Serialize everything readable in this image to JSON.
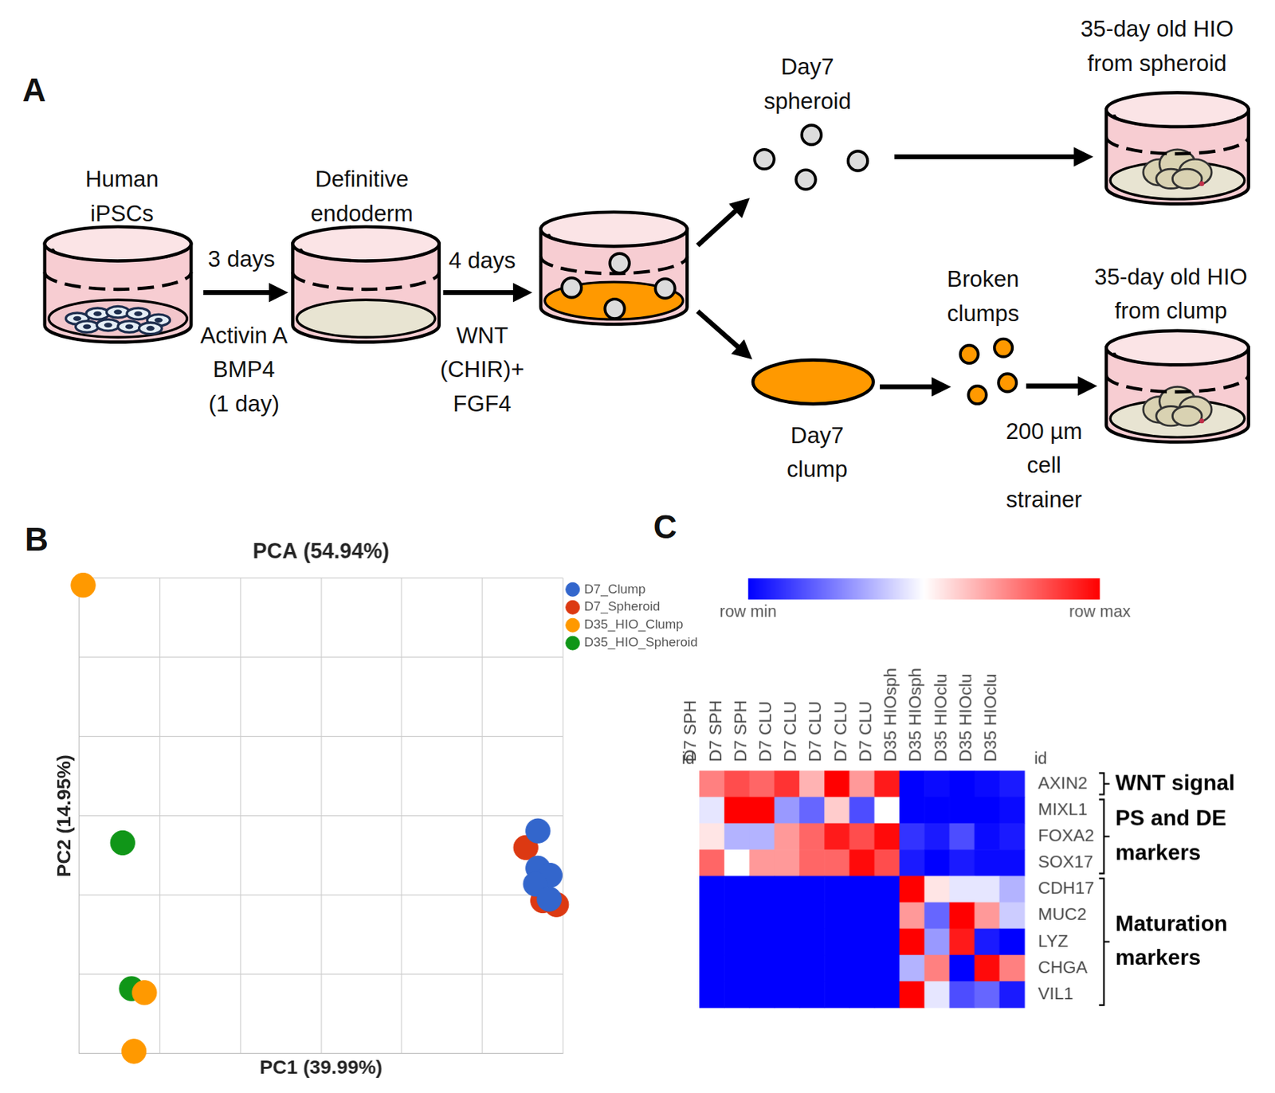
{
  "panel_labels": [
    "A",
    "B",
    "C"
  ],
  "diagram": {
    "nodes": [
      {
        "id": "ipsc",
        "label": [
          "Human",
          "iPSCs"
        ]
      },
      {
        "id": "de",
        "label": [
          "Definitive",
          "endoderm"
        ]
      },
      {
        "id": "mix"
      },
      {
        "id": "sph",
        "label": [
          "Day7",
          "spheroid"
        ]
      },
      {
        "id": "hio_sph",
        "label": [
          "35-day old HIO",
          "from spheroid"
        ]
      },
      {
        "id": "clump",
        "label": [
          "Day7",
          "clump"
        ]
      },
      {
        "id": "broken",
        "label": [
          "Broken",
          "clumps"
        ]
      },
      {
        "id": "hio_clu",
        "label": [
          "35-day old HIO",
          "from clump"
        ]
      }
    ],
    "edges": [
      {
        "from": "ipsc",
        "to": "de",
        "above": [
          "3 days"
        ],
        "below": [
          "Activin A",
          "BMP4",
          "(1 day)"
        ]
      },
      {
        "from": "de",
        "to": "mix",
        "above": [
          "4 days"
        ],
        "below": [
          "WNT",
          "(CHIR)+",
          "FGF4"
        ]
      },
      {
        "from": "mix",
        "to": "sph"
      },
      {
        "from": "sph",
        "to": "hio_sph"
      },
      {
        "from": "mix",
        "to": "clump"
      },
      {
        "from": "clump",
        "to": "broken"
      },
      {
        "from": "broken",
        "to": "hio_clu",
        "below": [
          "200 µm",
          "cell",
          "strainer"
        ]
      }
    ]
  },
  "chart_data": [
    {
      "type": "scatter",
      "title": "PCA (54.94%)",
      "xlabel": "PC1 (39.99%)",
      "ylabel": "PC2 (14.95%)",
      "xlim": [
        0,
        6
      ],
      "ylim": [
        0,
        6
      ],
      "xticks": [
        0,
        1,
        2,
        3,
        4,
        5,
        6
      ],
      "yticks": [
        0,
        1,
        2,
        3,
        4,
        5,
        6
      ],
      "grid": true,
      "tick_labels": false,
      "legend": "right",
      "marker": "circle",
      "series": [
        {
          "name": "D7_Clump",
          "color": "#3366cc",
          "x": [
            5.69,
            5.69,
            5.84,
            5.66,
            5.83
          ],
          "values": [
            2.81,
            2.34,
            2.25,
            2.14,
            1.95
          ]
        },
        {
          "name": "D7_Spheroid",
          "color": "#dc3912",
          "x": [
            5.54,
            5.75,
            5.92
          ],
          "values": [
            2.6,
            1.93,
            1.88
          ]
        },
        {
          "name": "D35_HIO_Clump",
          "color": "#ff9900",
          "x": [
            0.05,
            0.81,
            0.68
          ],
          "values": [
            5.91,
            0.77,
            0.03
          ]
        },
        {
          "name": "D35_HIO_Spheroid",
          "color": "#109618",
          "x": [
            0.54,
            0.65
          ],
          "values": [
            2.66,
            0.82
          ]
        }
      ]
    },
    {
      "type": "heatmap",
      "axis_label": "id",
      "columns": [
        "D7 SPH",
        "D7 SPH",
        "D7 SPH",
        "D7 CLU",
        "D7 CLU",
        "D7 CLU",
        "D7 CLU",
        "D7 CLU",
        "D35 HIOsph",
        "D35 HIOsph",
        "D35 HIOclu",
        "D35 HIOclu",
        "D35 HIOclu"
      ],
      "rows": [
        "AXIN2",
        "MIXL1",
        "FOXA2",
        "SOX17",
        "CDH17",
        "MUC2",
        "LYZ",
        "CHGA",
        "VIL1"
      ],
      "cells": [
        [
          0.75,
          0.85,
          0.8,
          0.9,
          0.65,
          1.0,
          0.7,
          0.95,
          0.0,
          0.02,
          0.0,
          0.02,
          0.05
        ],
        [
          0.45,
          1.0,
          1.0,
          0.3,
          0.2,
          0.6,
          0.15,
          0.5,
          0.0,
          0.0,
          0.0,
          0.0,
          0.02
        ],
        [
          0.55,
          0.35,
          0.35,
          0.7,
          0.8,
          0.95,
          0.85,
          0.98,
          0.1,
          0.05,
          0.15,
          0.02,
          0.05
        ],
        [
          0.8,
          0.5,
          0.7,
          0.7,
          0.8,
          0.8,
          0.98,
          0.85,
          0.05,
          0.0,
          0.05,
          0.02,
          0.02
        ],
        [
          0.0,
          0.0,
          0.0,
          0.0,
          0.0,
          0.0,
          0.0,
          0.0,
          1.0,
          0.55,
          0.45,
          0.45,
          0.35
        ],
        [
          0.0,
          0.0,
          0.0,
          0.0,
          0.0,
          0.0,
          0.0,
          0.0,
          0.7,
          0.2,
          1.0,
          0.7,
          0.4
        ],
        [
          0.0,
          0.0,
          0.0,
          0.0,
          0.0,
          0.0,
          0.0,
          0.0,
          1.0,
          0.3,
          0.95,
          0.05,
          0.0
        ],
        [
          0.0,
          0.0,
          0.0,
          0.0,
          0.0,
          0.0,
          0.0,
          0.0,
          0.35,
          0.75,
          0.0,
          0.98,
          0.75
        ],
        [
          0.0,
          0.0,
          0.0,
          0.0,
          0.0,
          0.0,
          0.0,
          0.0,
          1.0,
          0.45,
          0.15,
          0.2,
          0.05
        ]
      ],
      "colorbar": {
        "range": [
          0,
          1
        ],
        "colors": [
          "#0000ff",
          "#ffffff",
          "#ff0000"
        ],
        "ticks": [
          {
            "value": 0,
            "label": "row min"
          },
          {
            "value": 1,
            "label": "row max"
          }
        ]
      },
      "row_groups": [
        {
          "label": [
            "WNT signal"
          ],
          "rows": [
            0,
            0
          ]
        },
        {
          "label": [
            "PS and DE",
            "markers"
          ],
          "rows": [
            1,
            3
          ]
        },
        {
          "label": [
            "Maturation",
            "markers"
          ],
          "rows": [
            4,
            8
          ]
        }
      ]
    }
  ]
}
